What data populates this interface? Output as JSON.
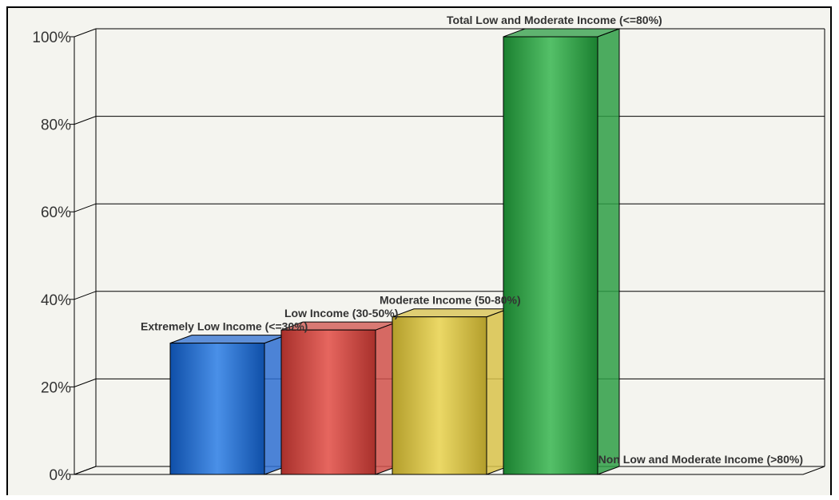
{
  "chart_data": {
    "type": "bar",
    "categories": [
      "Extremely Low Income (<=30%)",
      "Low Income (30-50%)",
      "Moderate Income (50-80%)",
      "Total Low and Moderate Income (<=80%)",
      "Non Low and Moderate Income (>80%)"
    ],
    "values": [
      30,
      33,
      36,
      100,
      0
    ],
    "colors": [
      "#2e6fd1",
      "#d0504a",
      "#d8c24a",
      "#2e9e45",
      "#888888"
    ],
    "ylim": [
      0,
      100
    ],
    "yticks": [
      "0%",
      "20%",
      "40%",
      "60%",
      "80%",
      "100%"
    ],
    "grid": true,
    "legend": "none",
    "title": "",
    "xlabel": "",
    "ylabel": ""
  }
}
